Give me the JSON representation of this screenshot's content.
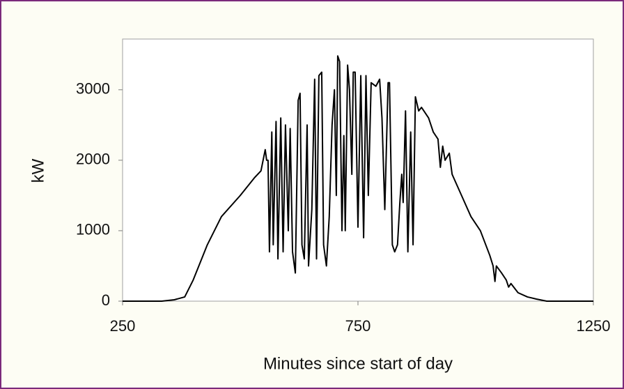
{
  "chart_data": {
    "type": "line",
    "xlabel": "Minutes since start of day",
    "ylabel": "kW",
    "x": [
      250,
      333,
      360,
      382,
      400,
      430,
      460,
      500,
      530,
      544,
      553,
      556,
      559,
      562,
      567,
      570,
      576,
      580,
      586,
      591,
      596,
      602,
      606,
      611,
      617,
      623,
      627,
      631,
      636,
      642,
      645,
      652,
      658,
      662,
      667,
      673,
      677,
      683,
      689,
      695,
      700,
      704,
      707,
      711,
      716,
      720,
      723,
      728,
      732,
      737,
      740,
      744,
      750,
      756,
      762,
      767,
      772,
      778,
      788,
      796,
      801,
      807,
      814,
      817,
      823,
      828,
      834,
      839,
      843,
      846,
      851,
      856,
      862,
      867,
      872,
      879,
      885,
      900,
      910,
      920,
      925,
      930,
      935,
      944,
      950,
      970,
      990,
      1010,
      1030,
      1037,
      1041,
      1044,
      1055,
      1065,
      1070,
      1075,
      1090,
      1110,
      1129,
      1151,
      1250
    ],
    "values": [
      0,
      0,
      20,
      60,
      300,
      800,
      1200,
      1500,
      1750,
      1850,
      2150,
      2000,
      2000,
      700,
      2400,
      800,
      2550,
      600,
      2600,
      700,
      2500,
      1000,
      2450,
      700,
      400,
      2850,
      2950,
      800,
      600,
      2500,
      500,
      1300,
      3150,
      600,
      3200,
      3250,
      800,
      500,
      1200,
      2500,
      3000,
      1500,
      3480,
      3400,
      1000,
      2350,
      1000,
      3350,
      3000,
      1800,
      3250,
      3250,
      1050,
      3200,
      900,
      3200,
      1500,
      3100,
      3050,
      3150,
      2600,
      1300,
      3100,
      3100,
      800,
      700,
      800,
      1400,
      1800,
      1400,
      2700,
      700,
      2400,
      800,
      2900,
      2700,
      2750,
      2600,
      2400,
      2300,
      1900,
      2200,
      2000,
      2100,
      1800,
      1500,
      1200,
      1000,
      650,
      500,
      280,
      500,
      400,
      300,
      200,
      250,
      120,
      60,
      30,
      0,
      0
    ],
    "color": "#000000",
    "xlim": [
      250,
      1250
    ],
    "xticks": [
      250,
      750,
      1250
    ],
    "ylim": [
      0,
      3720
    ],
    "yticks": [
      0,
      1000,
      2000,
      3000
    ],
    "grid": false
  }
}
